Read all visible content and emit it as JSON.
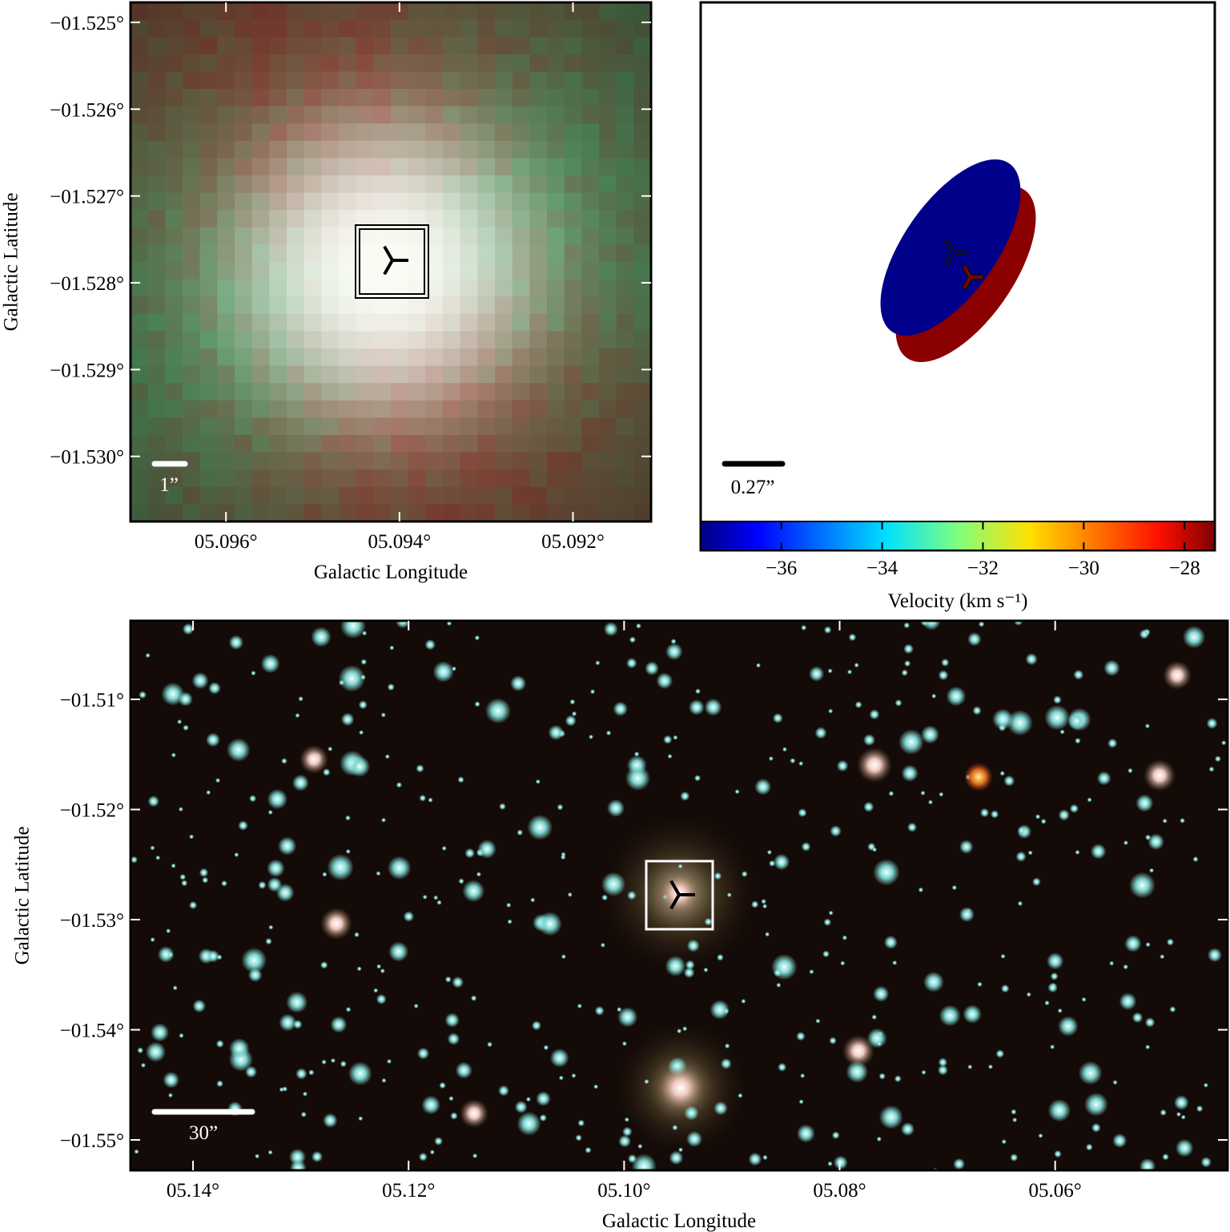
{
  "chart_data": [
    {
      "type": "image",
      "xlabel": "Galactic Longitude",
      "ylabel": "Galactic Latitude",
      "xlim": [
        5.0971,
        5.0911
      ],
      "ylim": [
        -1.53075,
        -1.52477
      ],
      "xticks": [
        {
          "value": 5.096,
          "label": "05.096°"
        },
        {
          "value": 5.094,
          "label": "05.094°"
        },
        {
          "value": 5.092,
          "label": "05.092°"
        }
      ],
      "yticks": [
        {
          "value": -1.525,
          "label": "−01.525°"
        },
        {
          "value": -1.526,
          "label": "−01.526°"
        },
        {
          "value": -1.527,
          "label": "−01.527°"
        },
        {
          "value": -1.528,
          "label": "−01.528°"
        },
        {
          "value": -1.529,
          "label": "−01.529°"
        },
        {
          "value": -1.53,
          "label": "−01.530°"
        }
      ],
      "scale_bar": "1”"
    },
    {
      "type": "ellipse",
      "scale_bar": "0.27”",
      "colorbar": {
        "label": "Velocity (km s⁻¹)",
        "lim": [
          -37.6,
          -27.4
        ],
        "ticks": [
          {
            "value": -36,
            "label": "−36"
          },
          {
            "value": -34,
            "label": "−34"
          },
          {
            "value": -32,
            "label": "−32"
          },
          {
            "value": -30,
            "label": "−30"
          },
          {
            "value": -28,
            "label": "−28"
          }
        ]
      }
    },
    {
      "type": "image",
      "xlabel": "Galactic Longitude",
      "ylabel": "Galactic Latitude",
      "xlim": [
        5.1458,
        5.044
      ],
      "ylim": [
        -1.55276,
        -1.50287
      ],
      "xticks": [
        {
          "value": 5.14,
          "label": "05.14°"
        },
        {
          "value": 5.12,
          "label": "05.12°"
        },
        {
          "value": 5.1,
          "label": "05.10°"
        },
        {
          "value": 5.08,
          "label": "05.08°"
        },
        {
          "value": 5.06,
          "label": "05.06°"
        }
      ],
      "yticks": [
        {
          "value": -1.51,
          "label": "−01.51°"
        },
        {
          "value": -1.52,
          "label": "−01.52°"
        },
        {
          "value": -1.53,
          "label": "−01.53°"
        },
        {
          "value": -1.54,
          "label": "−01.54°"
        },
        {
          "value": -1.55,
          "label": "−01.55°"
        }
      ],
      "scale_bar": "30”"
    }
  ]
}
